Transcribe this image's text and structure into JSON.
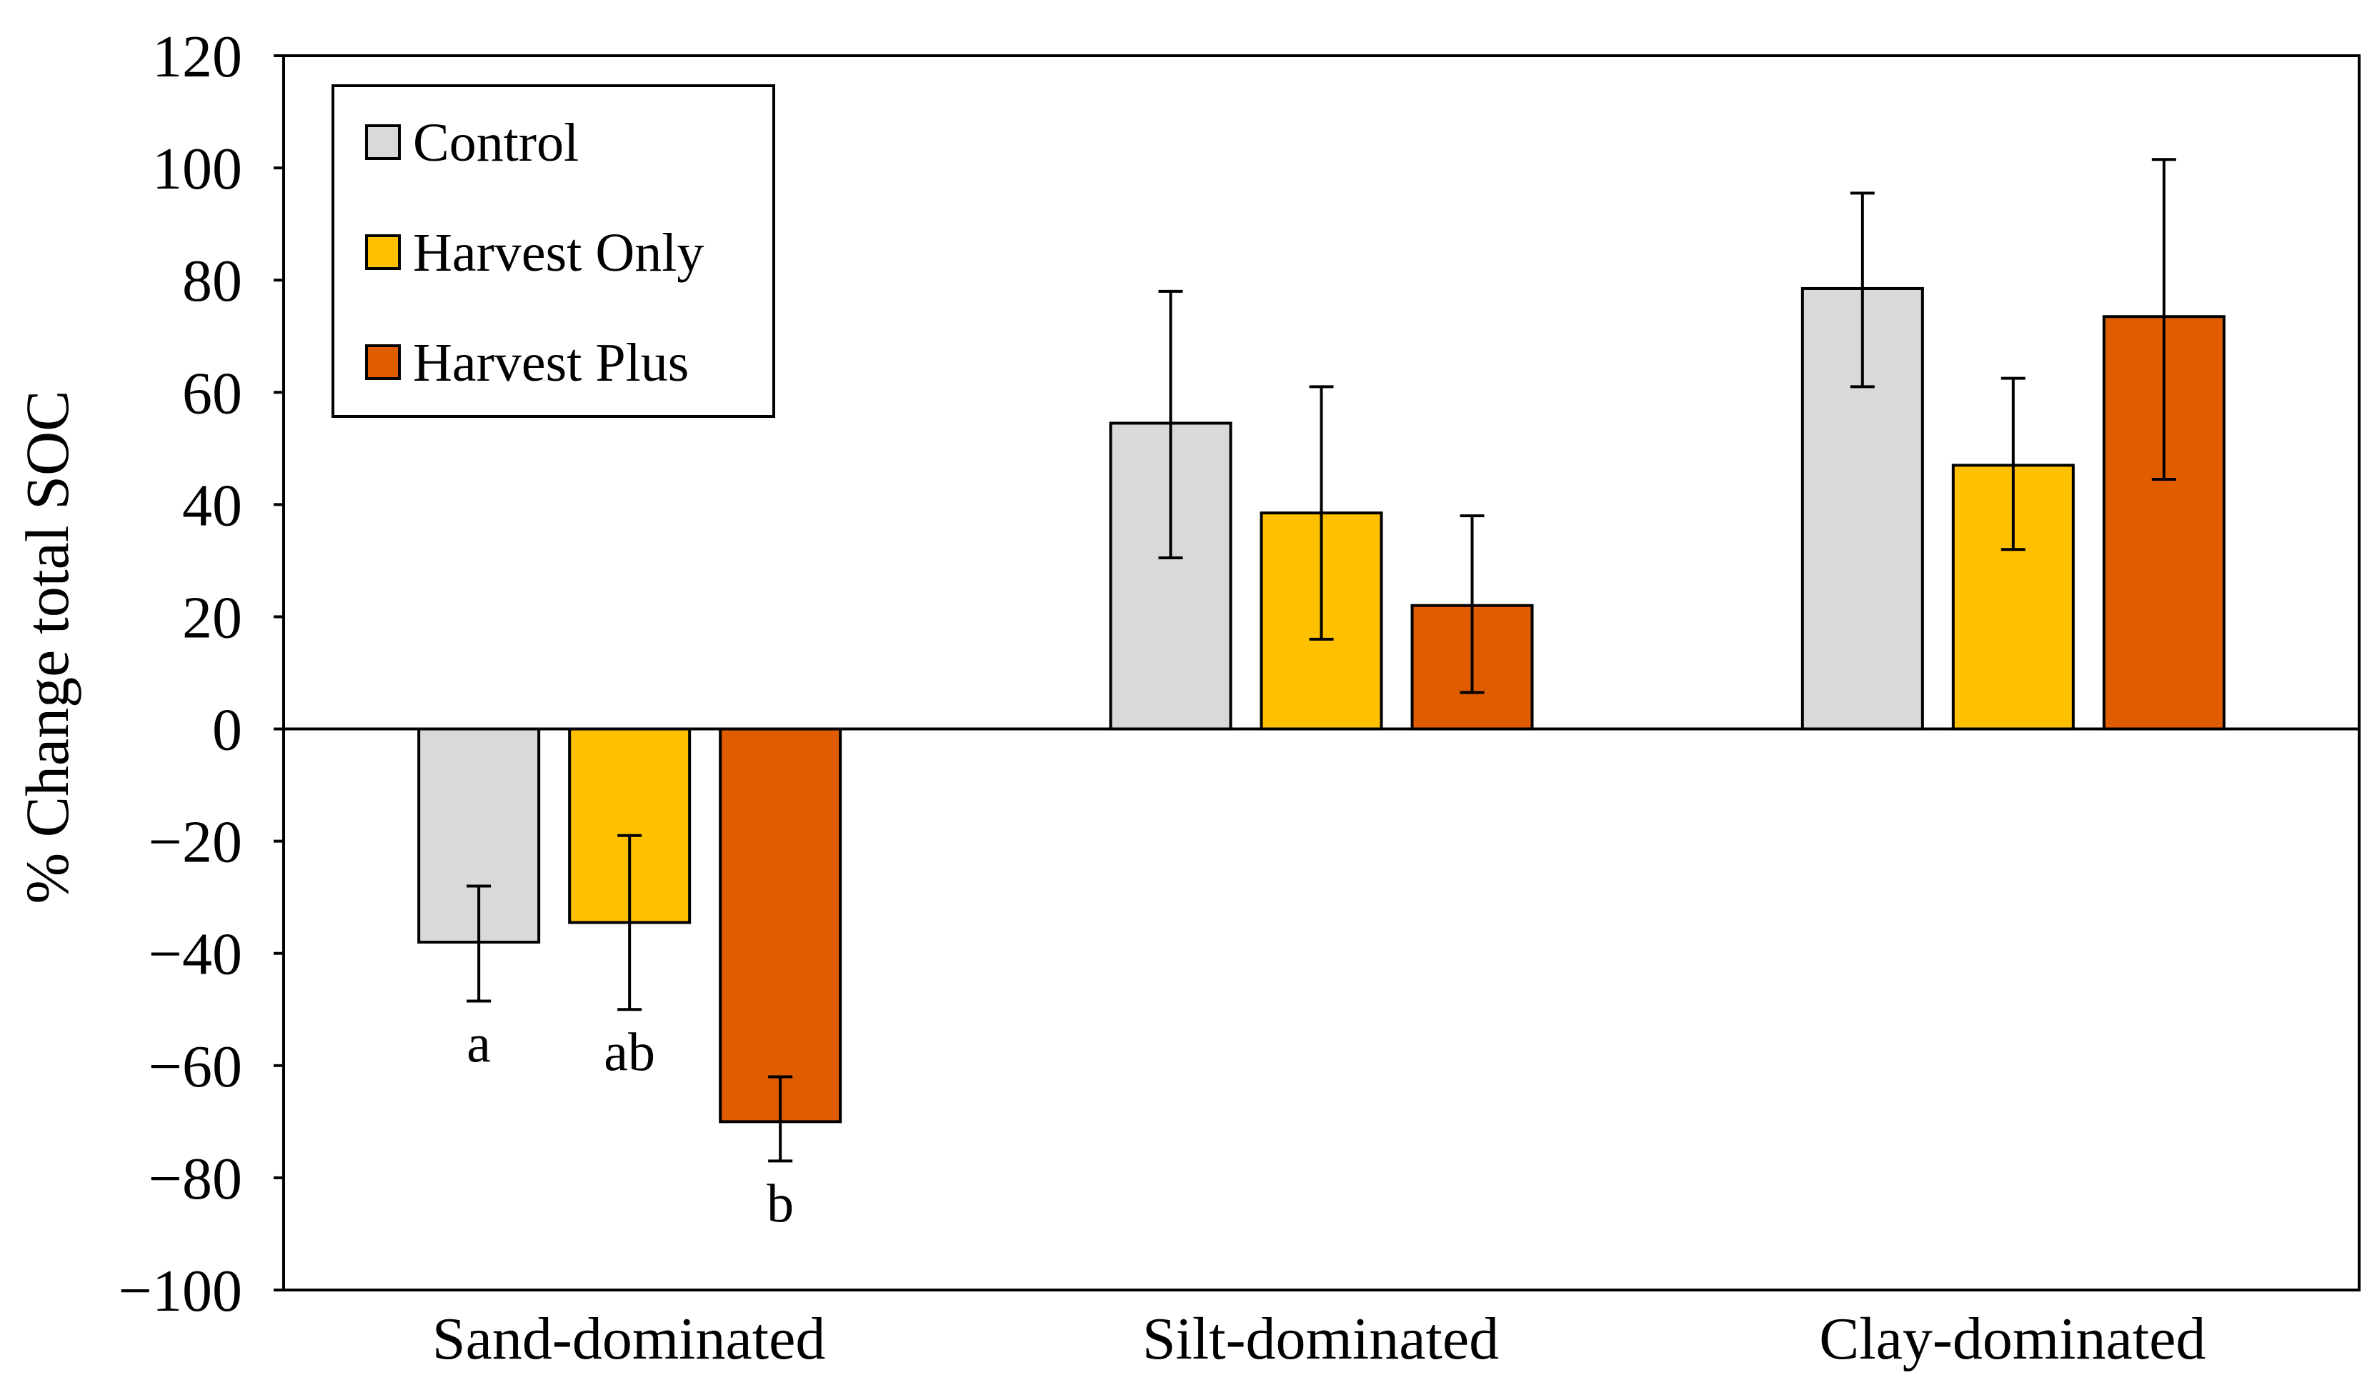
{
  "chart_data": {
    "type": "bar",
    "ylabel": "% Change total SOC",
    "xlabel": "",
    "ylim": [
      -100,
      120
    ],
    "yticks": [
      -100,
      -80,
      -60,
      -40,
      -20,
      0,
      20,
      40,
      60,
      80,
      100,
      120
    ],
    "ytick_labels": [
      "−100",
      "−80",
      "−60",
      "−40",
      "−20",
      "0",
      "20",
      "40",
      "60",
      "80",
      "100",
      "120"
    ],
    "grid": false,
    "legend_position": "top-left",
    "categories": [
      "Sand-dominated",
      "Silt-dominated",
      "Clay-dominated"
    ],
    "series": [
      {
        "name": "Control",
        "color": "#d9d9d9",
        "values": [
          -38,
          54.5,
          78.5
        ],
        "error_low": [
          -48.5,
          30.5,
          61
        ],
        "error_high": [
          -28,
          78,
          95.5
        ],
        "labels": [
          "a",
          "",
          ""
        ]
      },
      {
        "name": "Harvest Only",
        "color": "#ffc000",
        "values": [
          -34.5,
          38.5,
          47
        ],
        "error_low": [
          -50,
          16,
          32
        ],
        "error_high": [
          -19,
          61,
          62.5
        ],
        "labels": [
          "ab",
          "",
          ""
        ]
      },
      {
        "name": "Harvest Plus",
        "color": "#e05c00",
        "values": [
          -70,
          22,
          73.5
        ],
        "error_low": [
          -77,
          6.5,
          44.5
        ],
        "error_high": [
          -62,
          38,
          101.5
        ],
        "labels": [
          "b",
          "",
          ""
        ]
      }
    ]
  }
}
